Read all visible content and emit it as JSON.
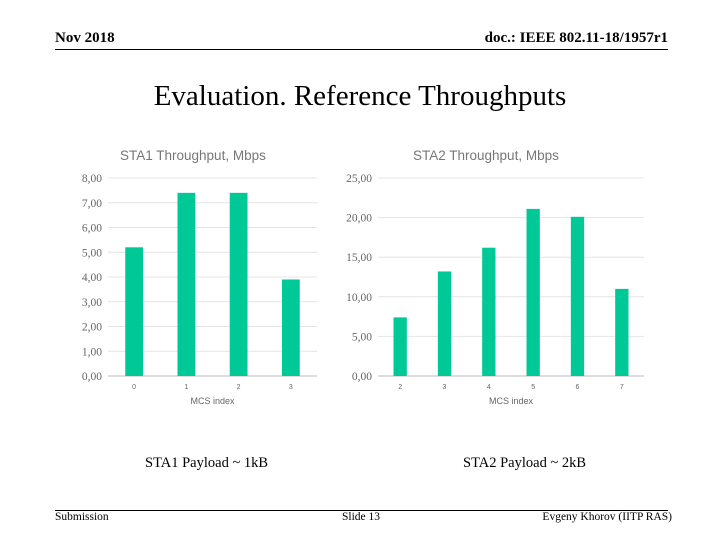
{
  "header": {
    "date": "Nov 2018",
    "doc": "doc.: IEEE 802.11-18/1957r1"
  },
  "title": "Evaluation. Reference Throughputs",
  "captions": {
    "left": "STA1 Payload ~ 1kB",
    "right": "STA2 Payload ~ 2kB"
  },
  "footer": {
    "left": "Submission",
    "center": "Slide 13",
    "right": "Evgeny Khorov (IITP RAS)"
  },
  "chart_data": [
    {
      "type": "bar",
      "title": "STA1 Throughput, Mbps",
      "xlabel": "MCS index",
      "ylabel": "",
      "categories": [
        "0",
        "1",
        "2",
        "3"
      ],
      "values": [
        5.2,
        7.4,
        7.4,
        3.9
      ],
      "ylim": [
        0,
        8
      ],
      "yticks": [
        "0,00",
        "1,00",
        "2,00",
        "3,00",
        "4,00",
        "5,00",
        "6,00",
        "7,00",
        "8,00"
      ],
      "grid": true,
      "color": "#00c896"
    },
    {
      "type": "bar",
      "title": "STA2 Throughput, Mbps",
      "xlabel": "MCS index",
      "ylabel": "",
      "categories": [
        "2",
        "3",
        "4",
        "5",
        "6",
        "7"
      ],
      "values": [
        7.4,
        13.2,
        16.2,
        21.1,
        20.1,
        11.0
      ],
      "ylim": [
        0,
        25
      ],
      "yticks": [
        "0,00",
        "5,00",
        "10,00",
        "15,00",
        "20,00",
        "25,00"
      ],
      "grid": true,
      "color": "#00c896"
    }
  ]
}
